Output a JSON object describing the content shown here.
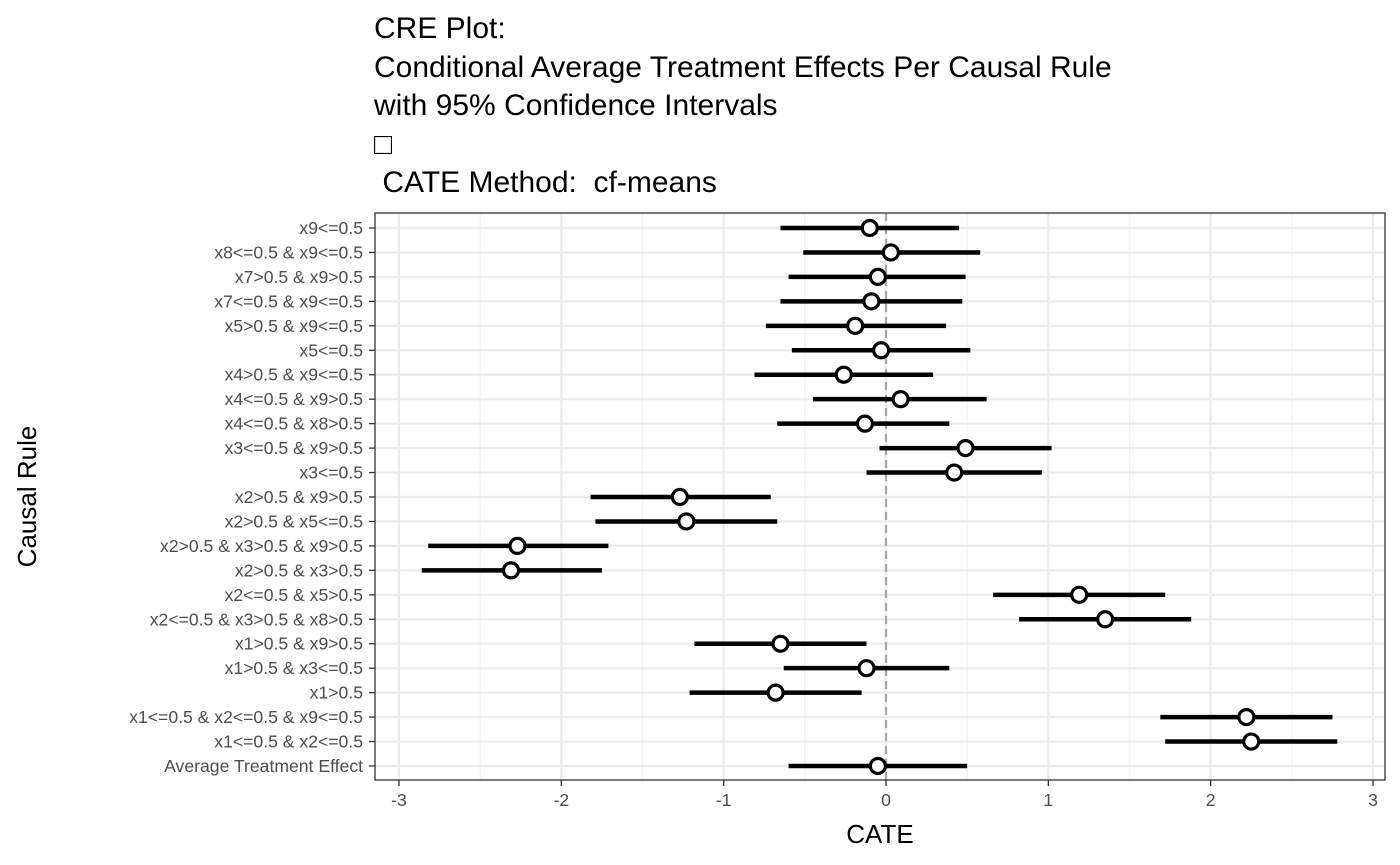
{
  "chart_data": {
    "type": "errorbar",
    "title_lines": [
      "CRE Plot:",
      "Conditional Average Treatment Effects Per Causal Rule",
      "with 95% Confidence Intervals",
      "□",
      " CATE Method:  cf-means"
    ],
    "xlabel": "CATE",
    "ylabel": "Causal Rule",
    "xlim": [
      -3.08,
      3.05
    ],
    "xticks": [
      -3,
      -2,
      -1,
      0,
      1,
      2,
      3
    ],
    "xtick_labels": [
      "-3",
      "-2",
      "-1",
      "0",
      "1",
      "2",
      "3"
    ],
    "reference_line": 0,
    "grid": true,
    "categories": [
      "x9<=0.5",
      "x8<=0.5 & x9<=0.5",
      "x7>0.5 & x9>0.5",
      "x7<=0.5 & x9<=0.5",
      "x5>0.5 & x9<=0.5",
      "x5<=0.5",
      "x4>0.5 & x9<=0.5",
      "x4<=0.5 & x9>0.5",
      "x4<=0.5 & x8>0.5",
      "x3<=0.5 & x9>0.5",
      "x3<=0.5",
      "x2>0.5 & x9>0.5",
      "x2>0.5 & x5<=0.5",
      "x2>0.5 & x3>0.5 & x9>0.5",
      "x2>0.5 & x3>0.5",
      "x2<=0.5 & x5>0.5",
      "x2<=0.5 & x3>0.5 & x8>0.5",
      "x1>0.5 & x9>0.5",
      "x1>0.5 & x3<=0.5",
      "x1>0.5",
      "x1<=0.5 & x2<=0.5 & x9<=0.5",
      "x1<=0.5 & x2<=0.5",
      "Average Treatment Effect"
    ],
    "estimates": [
      -0.1,
      0.03,
      -0.05,
      -0.09,
      -0.19,
      -0.03,
      -0.26,
      0.09,
      -0.13,
      0.49,
      0.42,
      -1.27,
      -1.23,
      -2.27,
      -2.31,
      1.19,
      1.35,
      -0.65,
      -0.12,
      -0.68,
      2.22,
      2.25,
      -0.05
    ],
    "lower": [
      -0.65,
      -0.51,
      -0.6,
      -0.65,
      -0.74,
      -0.58,
      -0.81,
      -0.45,
      -0.67,
      -0.04,
      -0.12,
      -1.82,
      -1.79,
      -2.82,
      -2.86,
      0.66,
      0.82,
      -1.18,
      -0.63,
      -1.21,
      1.69,
      1.72,
      -0.6
    ],
    "upper": [
      0.45,
      0.58,
      0.49,
      0.47,
      0.37,
      0.52,
      0.29,
      0.62,
      0.39,
      1.02,
      0.96,
      -0.71,
      -0.67,
      -1.71,
      -1.75,
      1.72,
      1.88,
      -0.12,
      0.39,
      -0.15,
      2.75,
      2.78,
      0.5
    ],
    "colors": {
      "interval": "#000000",
      "point_fill": "#ffffff",
      "point_stroke": "#000000",
      "reference_line": "#a6a6a6",
      "grid_major": "#ebebeb",
      "grid_minor": "#f2f2f2",
      "axis_text": "#4d4d4d",
      "panel_border": "#333333"
    }
  }
}
